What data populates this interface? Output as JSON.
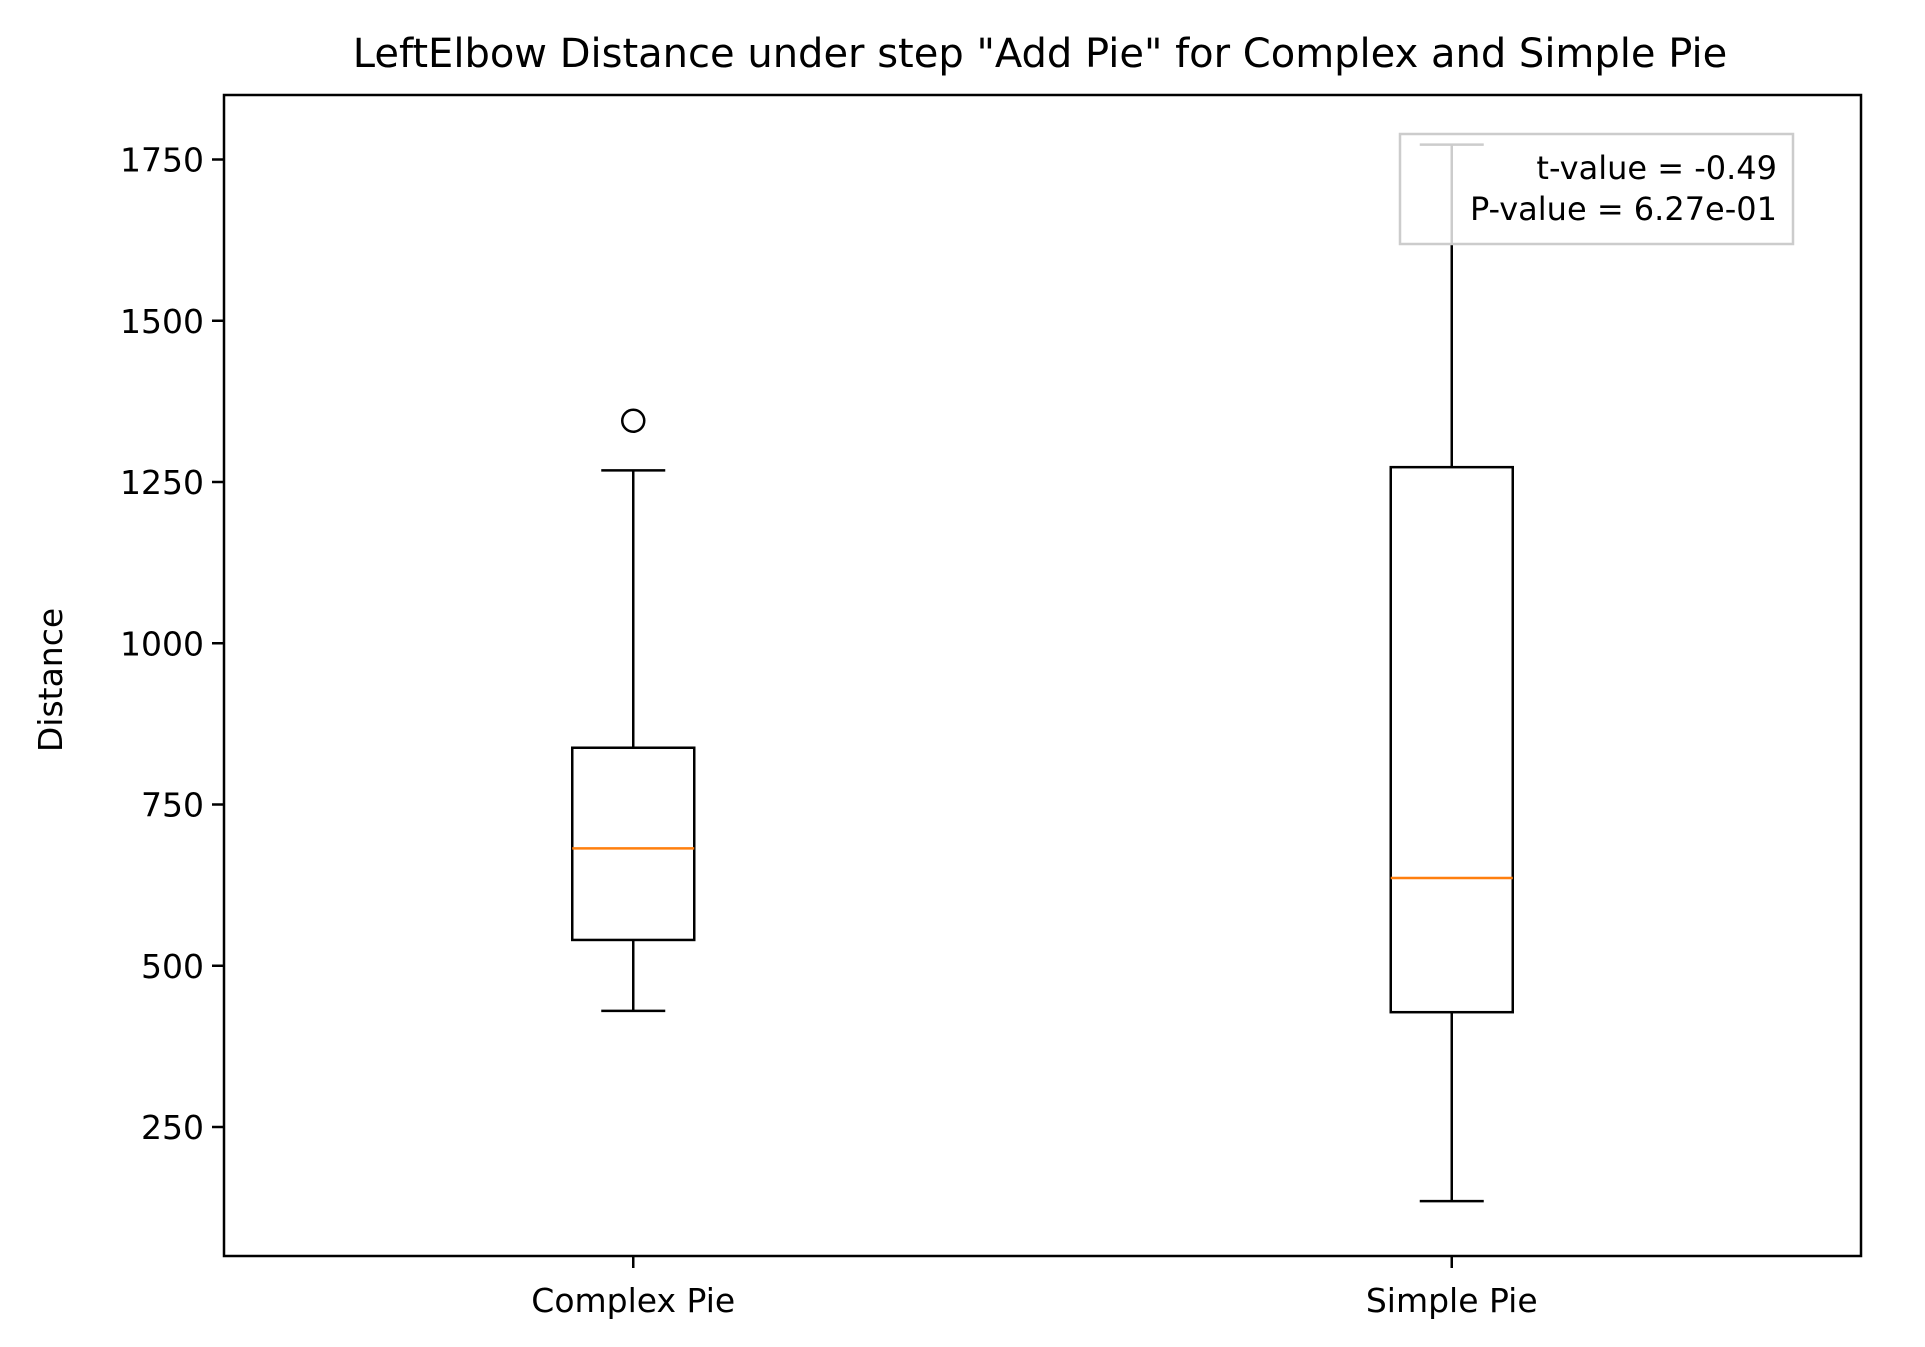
{
  "chart_data": {
    "type": "box",
    "title": "LeftElbow Distance under step \"Add Pie\" for Complex and Simple Pie",
    "xlabel": "",
    "ylabel": "Distance",
    "ylim": [
      50,
      1850
    ],
    "yticks": [
      250,
      500,
      750,
      1000,
      1250,
      1500,
      1750
    ],
    "categories": [
      "Complex Pie",
      "Simple Pie"
    ],
    "boxes": [
      {
        "category": "Complex Pie",
        "whisker_low": 430,
        "q1": 540,
        "median": 682,
        "q3": 838,
        "whisker_high": 1268,
        "outliers": [
          1345
        ]
      },
      {
        "category": "Simple Pie",
        "whisker_low": 135,
        "q1": 428,
        "median": 636,
        "q3": 1273,
        "whisker_high": 1773,
        "outliers": []
      }
    ],
    "annotation": {
      "lines": [
        "t-value = -0.49",
        "P-value = 6.27e-01"
      ],
      "placement": "top-right"
    },
    "colors": {
      "median": "#ff7f0e",
      "box": "#000000",
      "annotation_border": "#cccccc"
    }
  }
}
